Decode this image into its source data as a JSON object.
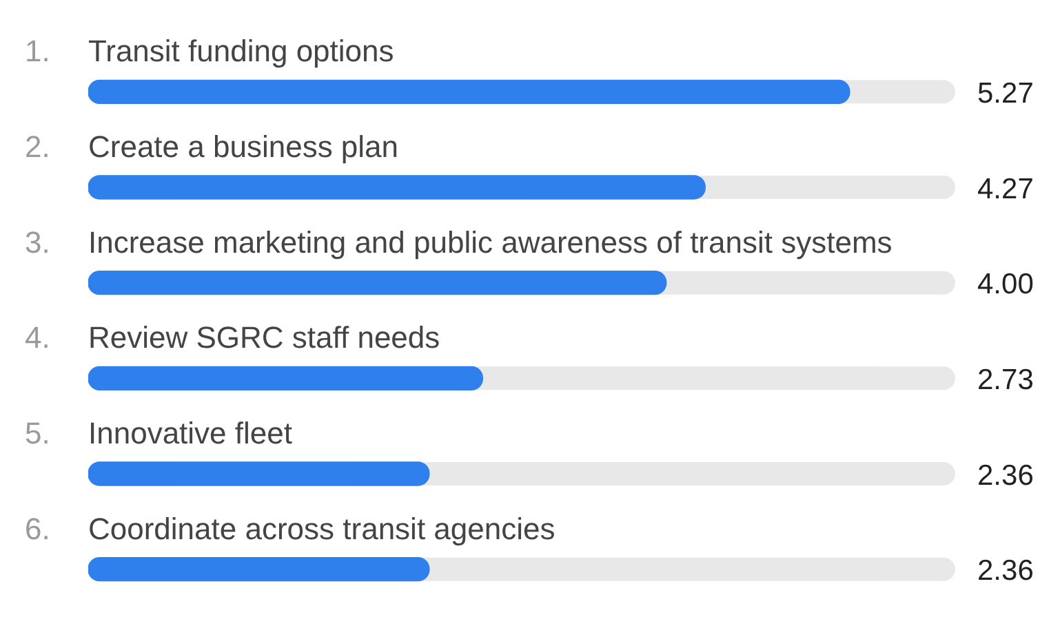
{
  "chart_data": {
    "type": "bar",
    "orientation": "horizontal",
    "categories": [
      "1. Transit funding options",
      "2. Create a business plan",
      "3. Increase marketing and public awareness of transit systems",
      "4. Review SGRC staff needs",
      "5. Innovative fleet",
      "6. Coordinate across transit agencies"
    ],
    "values": [
      5.27,
      4.27,
      4.0,
      2.73,
      2.36,
      2.36
    ],
    "value_labels": [
      "5.27",
      "4.27",
      "4.00",
      "2.73",
      "2.36",
      "2.36"
    ],
    "color": "#2f80ed",
    "xlim": [
      0,
      6
    ]
  }
}
